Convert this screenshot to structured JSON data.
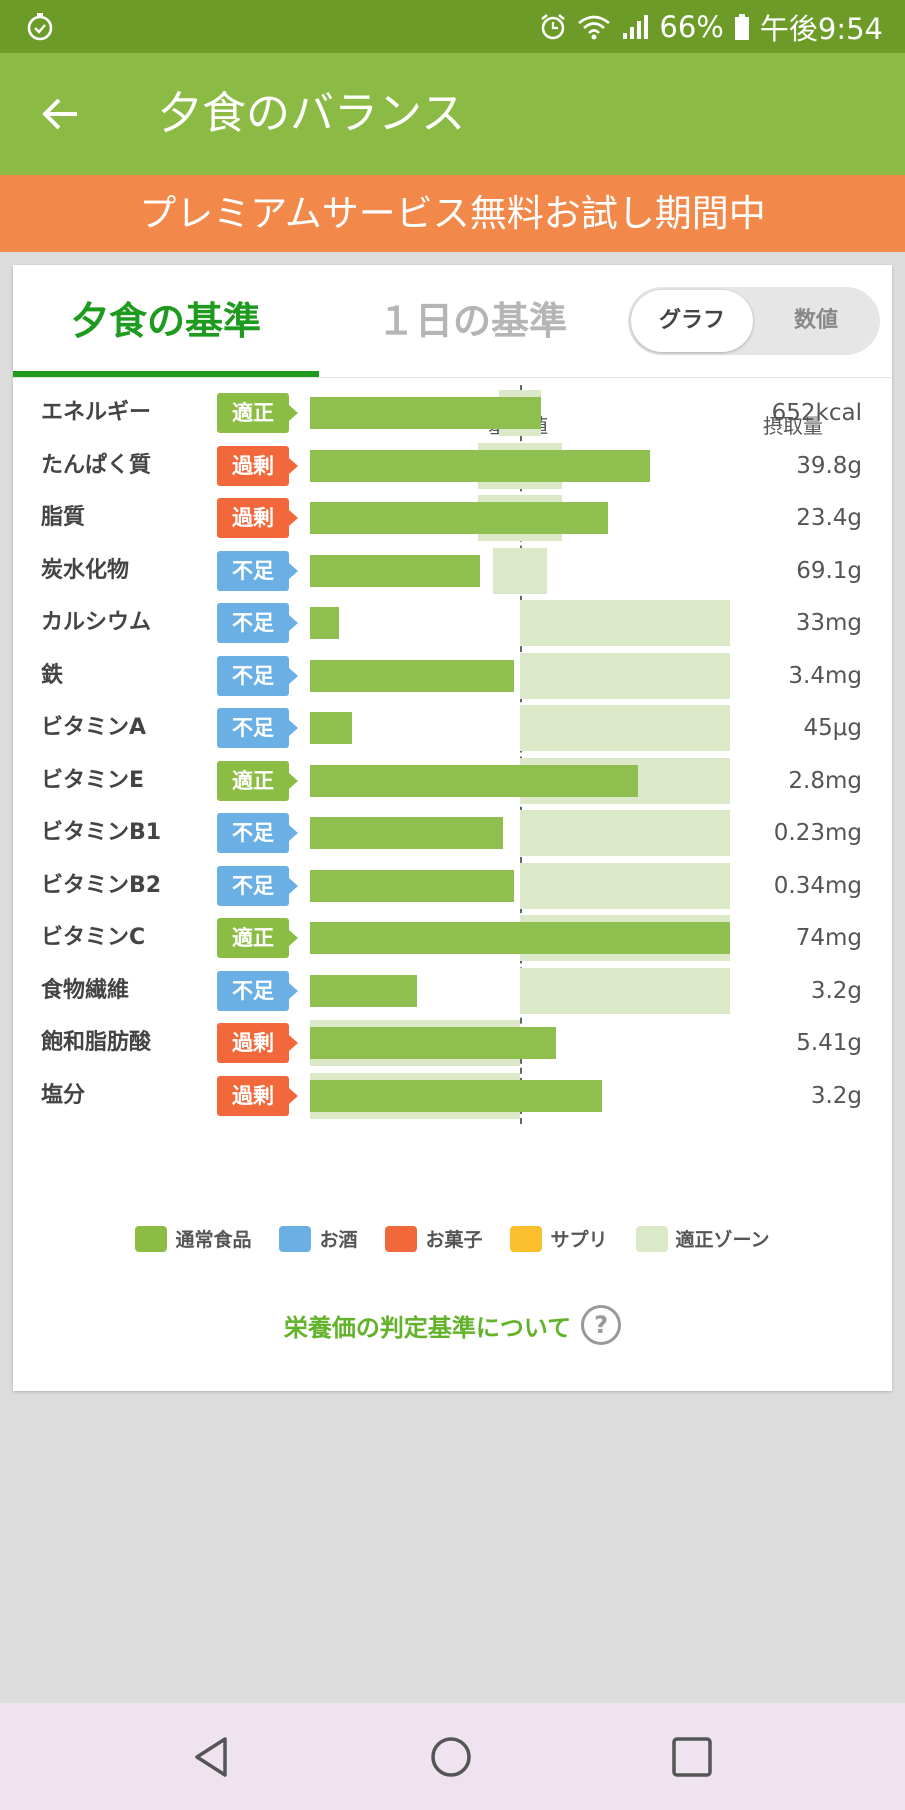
{
  "status_bar": {
    "battery": "66%",
    "time": "午後9:54"
  },
  "app_bar": {
    "title": "夕食のバランス"
  },
  "promo": {
    "text": "プレミアムサービス無料お試し期間中"
  },
  "tabs": [
    {
      "label": "夕食の基準",
      "active": true
    },
    {
      "label": "１日の基準",
      "active": false
    }
  ],
  "view_toggle": {
    "graph": "グラフ",
    "numeric": "数値",
    "selected": "グラフ"
  },
  "columns": {
    "standard": "基準値",
    "intake": "摂取量"
  },
  "status_colors": {
    "適正": "#8bbd45",
    "過剰": "#f2683a",
    "不足": "#6ab0e4"
  },
  "chart_data": {
    "type": "bar",
    "reference_percent": 100,
    "scale_max_percent": 200,
    "rows": [
      {
        "name": "エネルギー",
        "status": "適正",
        "value": "652kcal",
        "intake_percent": 110,
        "zone_percent": [
          90,
          110
        ]
      },
      {
        "name": "たんぱく質",
        "status": "過剰",
        "value": "39.8g",
        "intake_percent": 162,
        "zone_percent": [
          80,
          120
        ]
      },
      {
        "name": "脂質",
        "status": "過剰",
        "value": "23.4g",
        "intake_percent": 142,
        "zone_percent": [
          80,
          120
        ]
      },
      {
        "name": "炭水化物",
        "status": "不足",
        "value": "69.1g",
        "intake_percent": 81,
        "zone_percent": [
          87,
          113
        ]
      },
      {
        "name": "カルシウム",
        "status": "不足",
        "value": "33mg",
        "intake_percent": 14,
        "zone_percent": [
          100,
          200
        ]
      },
      {
        "name": "鉄",
        "status": "不足",
        "value": "3.4mg",
        "intake_percent": 97,
        "zone_percent": [
          100,
          200
        ]
      },
      {
        "name": "ビタミンA",
        "status": "不足",
        "value": "45μg",
        "intake_percent": 20,
        "zone_percent": [
          100,
          200
        ]
      },
      {
        "name": "ビタミンE",
        "status": "適正",
        "value": "2.8mg",
        "intake_percent": 156,
        "zone_percent": [
          100,
          200
        ]
      },
      {
        "name": "ビタミンB1",
        "status": "不足",
        "value": "0.23mg",
        "intake_percent": 92,
        "zone_percent": [
          100,
          200
        ]
      },
      {
        "name": "ビタミンB2",
        "status": "不足",
        "value": "0.34mg",
        "intake_percent": 97,
        "zone_percent": [
          100,
          200
        ]
      },
      {
        "name": "ビタミンC",
        "status": "適正",
        "value": "74mg",
        "intake_percent": 200,
        "zone_percent": [
          100,
          200
        ]
      },
      {
        "name": "食物繊維",
        "status": "不足",
        "value": "3.2g",
        "intake_percent": 51,
        "zone_percent": [
          100,
          200
        ]
      },
      {
        "name": "飽和脂肪酸",
        "status": "過剰",
        "value": "5.41g",
        "intake_percent": 117,
        "zone_percent": [
          0,
          100
        ]
      },
      {
        "name": "塩分",
        "status": "過剰",
        "value": "3.2g",
        "intake_percent": 139,
        "zone_percent": [
          0,
          100
        ]
      }
    ]
  },
  "legend": [
    {
      "label": "通常食品",
      "color": "#8bbd45"
    },
    {
      "label": "お酒",
      "color": "#6ab0e4"
    },
    {
      "label": "お菓子",
      "color": "#f2683a"
    },
    {
      "label": "サプリ",
      "color": "#fbbf2e"
    },
    {
      "label": "適正ゾーン",
      "color": "#dce9c8"
    }
  ],
  "criteria_link": {
    "text": "栄養価の判定基準について",
    "icon": "?"
  },
  "nav": {
    "back_icon": "triangle-back-icon",
    "home_icon": "circle-home-icon",
    "recents_icon": "square-recents-icon"
  }
}
